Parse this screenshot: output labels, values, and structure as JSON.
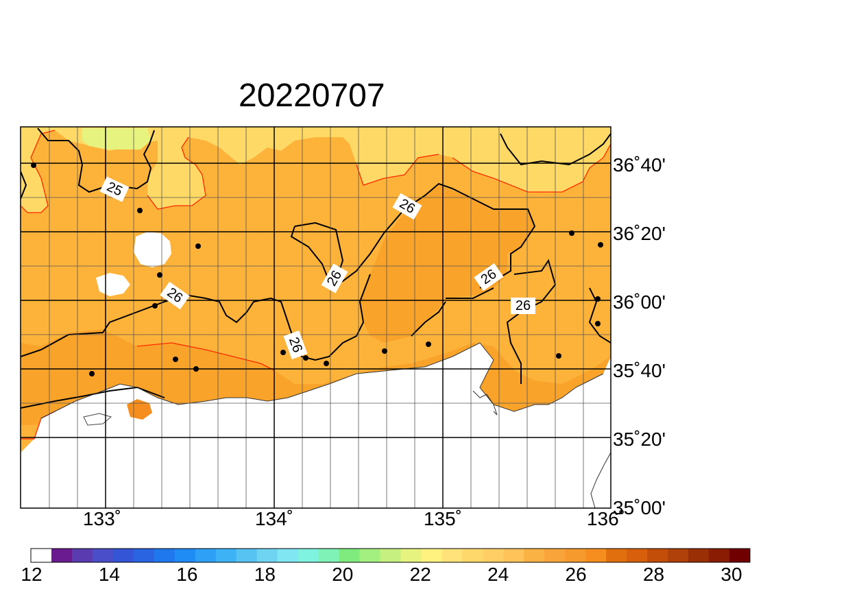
{
  "title": "20220707",
  "lat_labels": [
    "36˚40'",
    "36˚20'",
    "36˚00'",
    "35˚40'",
    "35˚20'",
    "35˚00'"
  ],
  "lon_labels": [
    "133˚",
    "134˚",
    "135˚",
    "136˚"
  ],
  "contour_labels": [
    "25",
    "26",
    "26",
    "26",
    "26",
    "26",
    "26"
  ],
  "colorbar": {
    "tick_labels": [
      "12",
      "14",
      "16",
      "18",
      "20",
      "22",
      "24",
      "26",
      "28",
      "30"
    ],
    "colors": [
      "#ffffff",
      "#6a1b8f",
      "#5a3cb0",
      "#4a4ec8",
      "#3355d6",
      "#2a64e0",
      "#1f78ee",
      "#1f8cf5",
      "#2ea0f5",
      "#3db3f5",
      "#57c3f3",
      "#6fd3f2",
      "#7fe6f2",
      "#7ff2e0",
      "#7ff2b8",
      "#7feb7f",
      "#a3ef7f",
      "#c6f07f",
      "#e6f47f",
      "#fff27f",
      "#ffe37a",
      "#ffd86b",
      "#ffcf66",
      "#ffc35a",
      "#fbb244",
      "#f9a43b",
      "#f79a2e",
      "#f58e1f",
      "#e26f0e",
      "#d8600c",
      "#c24e0a",
      "#b0410a",
      "#9a2f06",
      "#8a1c04",
      "#700000"
    ]
  },
  "palette": {
    "yellow_light": "#ffd966",
    "orange_light": "#fdb23a",
    "orange_mid": "#f9a32b",
    "yellow_green": "#e6f47f",
    "contour_black": "#000000",
    "contour_red": "#ff2a00"
  },
  "stations_count_visible": 18
}
